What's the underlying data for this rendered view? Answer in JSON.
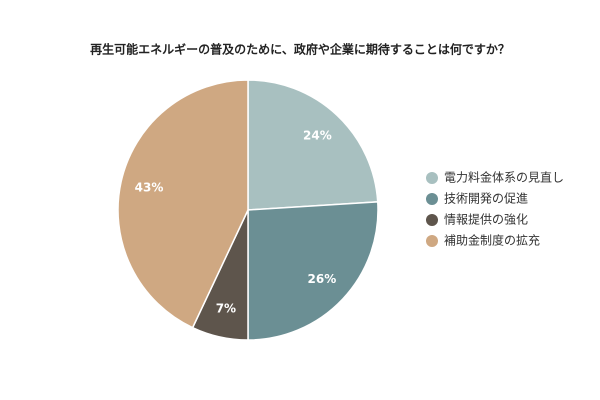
{
  "chart_data": {
    "type": "pie",
    "title": "再生可能エネルギーの普及のために、政府や企業に期待することは何ですか？",
    "categories": [
      "電力料金体系の見直し",
      "技術開発の促進",
      "情報提供の強化",
      "補助金制度の拡充"
    ],
    "values": [
      24,
      26,
      7,
      43
    ],
    "value_labels": [
      "24%",
      "26%",
      "7%",
      "43%"
    ],
    "colors": [
      "#a8c0c0",
      "#6b8f94",
      "#5e554c",
      "#cfa882"
    ],
    "legend": "right"
  }
}
